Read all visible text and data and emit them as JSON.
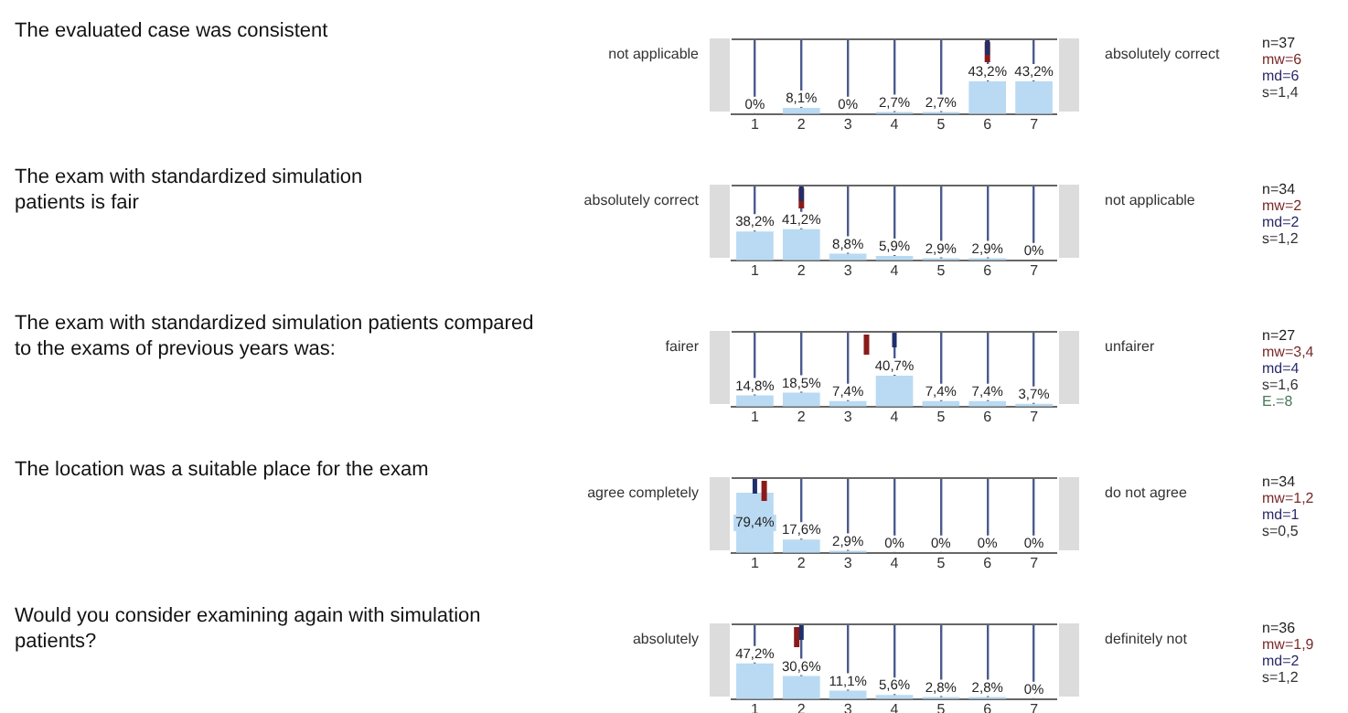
{
  "chart_data": [
    {
      "type": "bar",
      "x": [
        1,
        2,
        3,
        4,
        5,
        6,
        7
      ],
      "xlim": [
        0.5,
        7.5
      ],
      "xticks": [
        1,
        2,
        3,
        4,
        5,
        6,
        7
      ],
      "ylim": [
        0,
        100
      ],
      "grid": "x",
      "tick_labels": "x",
      "series": [
        {
          "type": "bar",
          "color": "#b9daf2",
          "values": [
            0,
            8.1,
            0,
            2.7,
            2.7,
            43.2,
            43.2
          ],
          "value_labels": [
            "0%",
            "8,1%",
            "0%",
            "2,7%",
            "2,7%",
            "43,2%",
            "43,2%"
          ]
        }
      ],
      "ref_lines": [
        {
          "axis": "x",
          "value": 6,
          "color": "#8b1a1a"
        },
        {
          "axis": "x",
          "value": 6,
          "color": "#1f2f6b"
        }
      ],
      "annotations": [
        "The evaluated case was consistent",
        "not applicable",
        "absolutely correct",
        "n=37",
        "mw=6",
        "md=6",
        "s=1,4"
      ]
    },
    {
      "type": "bar",
      "x": [
        1,
        2,
        3,
        4,
        5,
        6,
        7
      ],
      "xlim": [
        0.5,
        7.5
      ],
      "xticks": [
        1,
        2,
        3,
        4,
        5,
        6,
        7
      ],
      "ylim": [
        0,
        100
      ],
      "grid": "x",
      "tick_labels": "x",
      "series": [
        {
          "type": "bar",
          "color": "#b9daf2",
          "values": [
            38.2,
            41.2,
            8.8,
            5.9,
            2.9,
            2.9,
            0
          ],
          "value_labels": [
            "38,2%",
            "41,2%",
            "8,8%",
            "5,9%",
            "2,9%",
            "2,9%",
            "0%"
          ]
        }
      ],
      "ref_lines": [
        {
          "axis": "x",
          "value": 2,
          "color": "#8b1a1a"
        },
        {
          "axis": "x",
          "value": 2,
          "color": "#1f2f6b"
        }
      ],
      "annotations": [
        "The exam with standardized simulation patients is fair",
        "absolutely correct",
        "not applicable",
        "n=34",
        "mw=2",
        "md=2",
        "s=1,2"
      ]
    },
    {
      "type": "bar",
      "x": [
        1,
        2,
        3,
        4,
        5,
        6,
        7
      ],
      "xlim": [
        0.5,
        7.5
      ],
      "xticks": [
        1,
        2,
        3,
        4,
        5,
        6,
        7
      ],
      "ylim": [
        0,
        100
      ],
      "grid": "x",
      "tick_labels": "x",
      "series": [
        {
          "type": "bar",
          "color": "#b9daf2",
          "values": [
            14.8,
            18.5,
            7.4,
            40.7,
            7.4,
            7.4,
            3.7
          ],
          "value_labels": [
            "14,8%",
            "18,5%",
            "7,4%",
            "40,7%",
            "7,4%",
            "7,4%",
            "3,7%"
          ]
        }
      ],
      "ref_lines": [
        {
          "axis": "x",
          "value": 3.4,
          "color": "#8b1a1a"
        },
        {
          "axis": "x",
          "value": 4,
          "color": "#1f2f6b"
        }
      ],
      "annotations": [
        "The exam with standardized simulation patients compared to the exams of previous years was:",
        "fairer",
        "unfairer",
        "n=27",
        "mw=3,4",
        "md=4",
        "s=1,6",
        "E.=8"
      ]
    },
    {
      "type": "bar",
      "x": [
        1,
        2,
        3,
        4,
        5,
        6,
        7
      ],
      "xlim": [
        0.5,
        7.5
      ],
      "xticks": [
        1,
        2,
        3,
        4,
        5,
        6,
        7
      ],
      "ylim": [
        0,
        100
      ],
      "grid": "x",
      "tick_labels": "x",
      "series": [
        {
          "type": "bar",
          "color": "#b9daf2",
          "values": [
            79.4,
            17.6,
            2.9,
            0,
            0,
            0,
            0
          ],
          "value_labels": [
            "79,4%",
            "17,6%",
            "2,9%",
            "0%",
            "0%",
            "0%",
            "0%"
          ]
        }
      ],
      "ref_lines": [
        {
          "axis": "x",
          "value": 1.2,
          "color": "#8b1a1a"
        },
        {
          "axis": "x",
          "value": 1,
          "color": "#1f2f6b"
        }
      ],
      "annotations": [
        "The location was a suitable place for the exam",
        "agree completely",
        "do not agree",
        "n=34",
        "mw=1,2",
        "md=1",
        "s=0,5"
      ]
    },
    {
      "type": "bar",
      "x": [
        1,
        2,
        3,
        4,
        5,
        6,
        7
      ],
      "xlim": [
        0.5,
        7.5
      ],
      "xticks": [
        1,
        2,
        3,
        4,
        5,
        6,
        7
      ],
      "ylim": [
        0,
        100
      ],
      "grid": "x",
      "tick_labels": "x",
      "series": [
        {
          "type": "bar",
          "color": "#b9daf2",
          "values": [
            47.2,
            30.6,
            11.1,
            5.6,
            2.8,
            2.8,
            0
          ],
          "value_labels": [
            "47,2%",
            "30,6%",
            "11,1%",
            "5,6%",
            "2,8%",
            "2,8%",
            "0%"
          ]
        }
      ],
      "ref_lines": [
        {
          "axis": "x",
          "value": 1.9,
          "color": "#8b1a1a"
        },
        {
          "axis": "x",
          "value": 2,
          "color": "#1f2f6b"
        }
      ],
      "annotations": [
        "Would you consider examining again with simulation patients?",
        "absolutely",
        "definitely not",
        "n=36",
        "mw=1,9",
        "md=2",
        "s=1,2"
      ]
    }
  ]
}
